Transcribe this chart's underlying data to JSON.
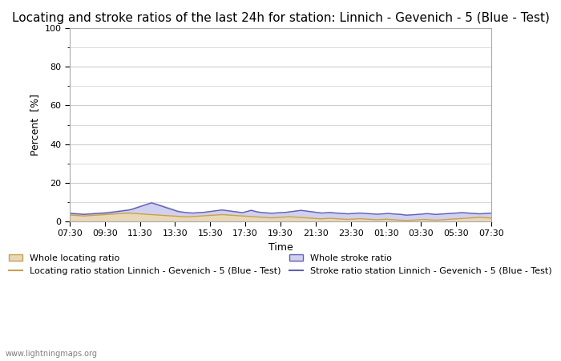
{
  "title": "Locating and stroke ratios of the last 24h for station: Linnich - Gevenich - 5 (Blue - Test)",
  "xlabel": "Time",
  "ylabel": "Percent  [%]",
  "ylim": [
    0,
    100
  ],
  "yticks": [
    0,
    20,
    40,
    60,
    80,
    100
  ],
  "yticks_minor": [
    10,
    30,
    50,
    70,
    90
  ],
  "x_labels": [
    "07:30",
    "09:30",
    "11:30",
    "13:30",
    "15:30",
    "17:30",
    "19:30",
    "21:30",
    "23:30",
    "01:30",
    "03:30",
    "05:30",
    "07:30"
  ],
  "background_color": "#ffffff",
  "plot_bg_color": "#ffffff",
  "grid_color": "#cccccc",
  "title_fontsize": 11,
  "axis_fontsize": 9,
  "tick_fontsize": 8,
  "watermark": "www.lightningmaps.org",
  "legend": [
    {
      "label": "Whole locating ratio",
      "type": "fill",
      "color": "#e8d8b8"
    },
    {
      "label": "Locating ratio station Linnich - Gevenich - 5 (Blue - Test)",
      "type": "line",
      "color": "#c8a050"
    },
    {
      "label": "Whole stroke ratio",
      "type": "fill",
      "color": "#d0d0f0"
    },
    {
      "label": "Stroke ratio station Linnich - Gevenich - 5 (Blue - Test)",
      "type": "line",
      "color": "#6060b0"
    }
  ],
  "n_points": 145,
  "whole_locating_ratio": [
    3.5,
    3.4,
    3.3,
    3.2,
    3.1,
    3.0,
    3.1,
    3.2,
    3.3,
    3.4,
    3.5,
    3.6,
    3.7,
    3.8,
    3.9,
    4.0,
    4.1,
    4.2,
    4.3,
    4.4,
    4.5,
    4.4,
    4.3,
    4.2,
    4.1,
    4.0,
    3.9,
    3.8,
    3.7,
    3.6,
    3.5,
    3.4,
    3.3,
    3.2,
    3.1,
    3.0,
    2.9,
    2.8,
    2.7,
    2.6,
    2.5,
    2.6,
    2.7,
    2.8,
    2.9,
    3.0,
    3.1,
    3.2,
    3.3,
    3.4,
    3.5,
    3.6,
    3.7,
    3.6,
    3.5,
    3.4,
    3.3,
    3.2,
    3.1,
    3.0,
    2.9,
    2.8,
    2.7,
    2.6,
    2.5,
    2.4,
    2.3,
    2.2,
    2.1,
    2.0,
    2.1,
    2.2,
    2.3,
    2.4,
    2.5,
    2.6,
    2.5,
    2.4,
    2.3,
    2.2,
    2.1,
    2.0,
    1.9,
    1.8,
    1.7,
    1.6,
    1.5,
    1.6,
    1.7,
    1.8,
    1.7,
    1.6,
    1.5,
    1.4,
    1.3,
    1.2,
    1.3,
    1.4,
    1.5,
    1.6,
    1.5,
    1.4,
    1.3,
    1.2,
    1.1,
    1.0,
    1.1,
    1.2,
    1.3,
    1.2,
    1.1,
    1.0,
    0.9,
    0.8,
    0.7,
    0.6,
    0.7,
    0.8,
    0.9,
    1.0,
    1.1,
    1.2,
    1.1,
    1.0,
    0.9,
    0.8,
    0.9,
    1.0,
    1.1,
    1.2,
    1.3,
    1.4,
    1.5,
    1.6,
    1.7,
    1.8,
    1.9,
    2.0,
    2.1,
    2.2,
    2.3,
    2.2,
    2.1,
    2.0,
    1.9
  ],
  "station_locating_ratio": [
    3.2,
    3.1,
    3.0,
    2.9,
    2.8,
    2.7,
    2.8,
    2.9,
    3.0,
    3.1,
    3.2,
    3.3,
    3.4,
    3.5,
    3.6,
    3.7,
    3.8,
    3.9,
    4.0,
    4.1,
    4.2,
    4.1,
    4.0,
    3.9,
    3.8,
    3.7,
    3.6,
    3.5,
    3.4,
    3.3,
    3.2,
    3.1,
    3.0,
    2.9,
    2.8,
    2.7,
    2.6,
    2.5,
    2.4,
    2.3,
    2.2,
    2.3,
    2.4,
    2.5,
    2.6,
    2.7,
    2.8,
    2.9,
    3.0,
    3.1,
    3.2,
    3.3,
    3.4,
    3.3,
    3.2,
    3.1,
    3.0,
    2.9,
    2.8,
    2.7,
    2.6,
    2.5,
    2.4,
    2.3,
    2.2,
    2.1,
    2.0,
    1.9,
    1.8,
    1.7,
    1.8,
    1.9,
    2.0,
    2.1,
    2.2,
    2.3,
    2.2,
    2.1,
    2.0,
    1.9,
    1.8,
    1.7,
    1.6,
    1.5,
    1.4,
    1.3,
    1.2,
    1.3,
    1.4,
    1.5,
    1.4,
    1.3,
    1.2,
    1.1,
    1.0,
    0.9,
    1.0,
    1.1,
    1.2,
    1.3,
    1.2,
    1.1,
    1.0,
    0.9,
    0.8,
    0.7,
    0.8,
    0.9,
    1.0,
    0.9,
    0.8,
    0.7,
    0.6,
    0.5,
    0.4,
    0.3,
    0.4,
    0.5,
    0.6,
    0.7,
    0.8,
    0.9,
    0.8,
    0.7,
    0.6,
    0.5,
    0.6,
    0.7,
    0.8,
    0.9,
    1.0,
    1.1,
    1.2,
    1.3,
    1.4,
    1.5,
    1.6,
    1.7,
    1.8,
    1.9,
    2.0,
    1.9,
    1.8,
    1.7,
    1.6
  ],
  "whole_stroke_ratio": [
    4.5,
    4.4,
    4.3,
    4.2,
    4.1,
    4.0,
    4.1,
    4.2,
    4.3,
    4.4,
    4.5,
    4.6,
    4.7,
    4.8,
    5.0,
    5.2,
    5.4,
    5.6,
    5.8,
    6.0,
    6.2,
    6.5,
    7.0,
    7.5,
    8.0,
    8.5,
    9.0,
    9.5,
    10.0,
    9.5,
    9.0,
    8.5,
    8.0,
    7.5,
    7.0,
    6.5,
    6.0,
    5.5,
    5.0,
    4.8,
    4.6,
    4.5,
    4.4,
    4.5,
    4.6,
    4.7,
    4.8,
    5.0,
    5.2,
    5.4,
    5.6,
    5.8,
    6.0,
    5.8,
    5.6,
    5.4,
    5.2,
    5.0,
    4.8,
    4.6,
    5.0,
    5.5,
    6.0,
    5.5,
    5.0,
    4.8,
    4.6,
    4.5,
    4.4,
    4.3,
    4.4,
    4.5,
    4.6,
    4.7,
    4.8,
    5.0,
    5.2,
    5.4,
    5.6,
    5.8,
    5.6,
    5.4,
    5.2,
    5.0,
    4.8,
    4.6,
    4.4,
    4.5,
    4.6,
    4.7,
    4.5,
    4.4,
    4.3,
    4.2,
    4.1,
    4.0,
    4.1,
    4.2,
    4.3,
    4.4,
    4.3,
    4.2,
    4.1,
    4.0,
    3.9,
    3.8,
    3.9,
    4.0,
    4.1,
    4.2,
    4.0,
    3.9,
    3.8,
    3.7,
    3.5,
    3.3,
    3.4,
    3.5,
    3.6,
    3.7,
    3.8,
    4.0,
    4.1,
    4.0,
    3.8,
    3.7,
    3.8,
    3.9,
    4.0,
    4.1,
    4.2,
    4.3,
    4.4,
    4.5,
    4.6,
    4.5,
    4.4,
    4.3,
    4.2,
    4.1,
    4.0,
    4.1,
    4.2,
    4.3,
    4.4
  ],
  "station_stroke_ratio": [
    4.0,
    3.9,
    3.8,
    3.7,
    3.6,
    3.5,
    3.6,
    3.7,
    3.8,
    3.9,
    4.0,
    4.1,
    4.2,
    4.3,
    4.5,
    4.7,
    4.9,
    5.1,
    5.3,
    5.5,
    5.7,
    6.0,
    6.5,
    7.0,
    7.5,
    8.0,
    8.5,
    9.0,
    9.5,
    9.0,
    8.5,
    8.0,
    7.5,
    7.0,
    6.5,
    6.0,
    5.5,
    5.0,
    4.8,
    4.6,
    4.4,
    4.3,
    4.2,
    4.3,
    4.4,
    4.5,
    4.6,
    4.8,
    5.0,
    5.2,
    5.4,
    5.6,
    5.8,
    5.6,
    5.4,
    5.2,
    5.0,
    4.8,
    4.6,
    4.4,
    4.8,
    5.2,
    5.6,
    5.2,
    4.8,
    4.6,
    4.4,
    4.3,
    4.2,
    4.1,
    4.2,
    4.3,
    4.4,
    4.5,
    4.6,
    4.8,
    5.0,
    5.2,
    5.4,
    5.6,
    5.4,
    5.2,
    5.0,
    4.8,
    4.6,
    4.4,
    4.2,
    4.3,
    4.4,
    4.5,
    4.3,
    4.2,
    4.1,
    4.0,
    3.9,
    3.8,
    3.9,
    4.0,
    4.1,
    4.2,
    4.1,
    4.0,
    3.9,
    3.8,
    3.7,
    3.6,
    3.7,
    3.8,
    3.9,
    4.0,
    3.8,
    3.7,
    3.6,
    3.5,
    3.3,
    3.1,
    3.2,
    3.3,
    3.4,
    3.5,
    3.6,
    3.8,
    3.9,
    3.8,
    3.6,
    3.5,
    3.6,
    3.7,
    3.8,
    3.9,
    4.0,
    4.1,
    4.2,
    4.3,
    4.4,
    4.3,
    4.2,
    4.1,
    4.0,
    3.9,
    3.8,
    3.9,
    4.0,
    4.1,
    4.2
  ]
}
